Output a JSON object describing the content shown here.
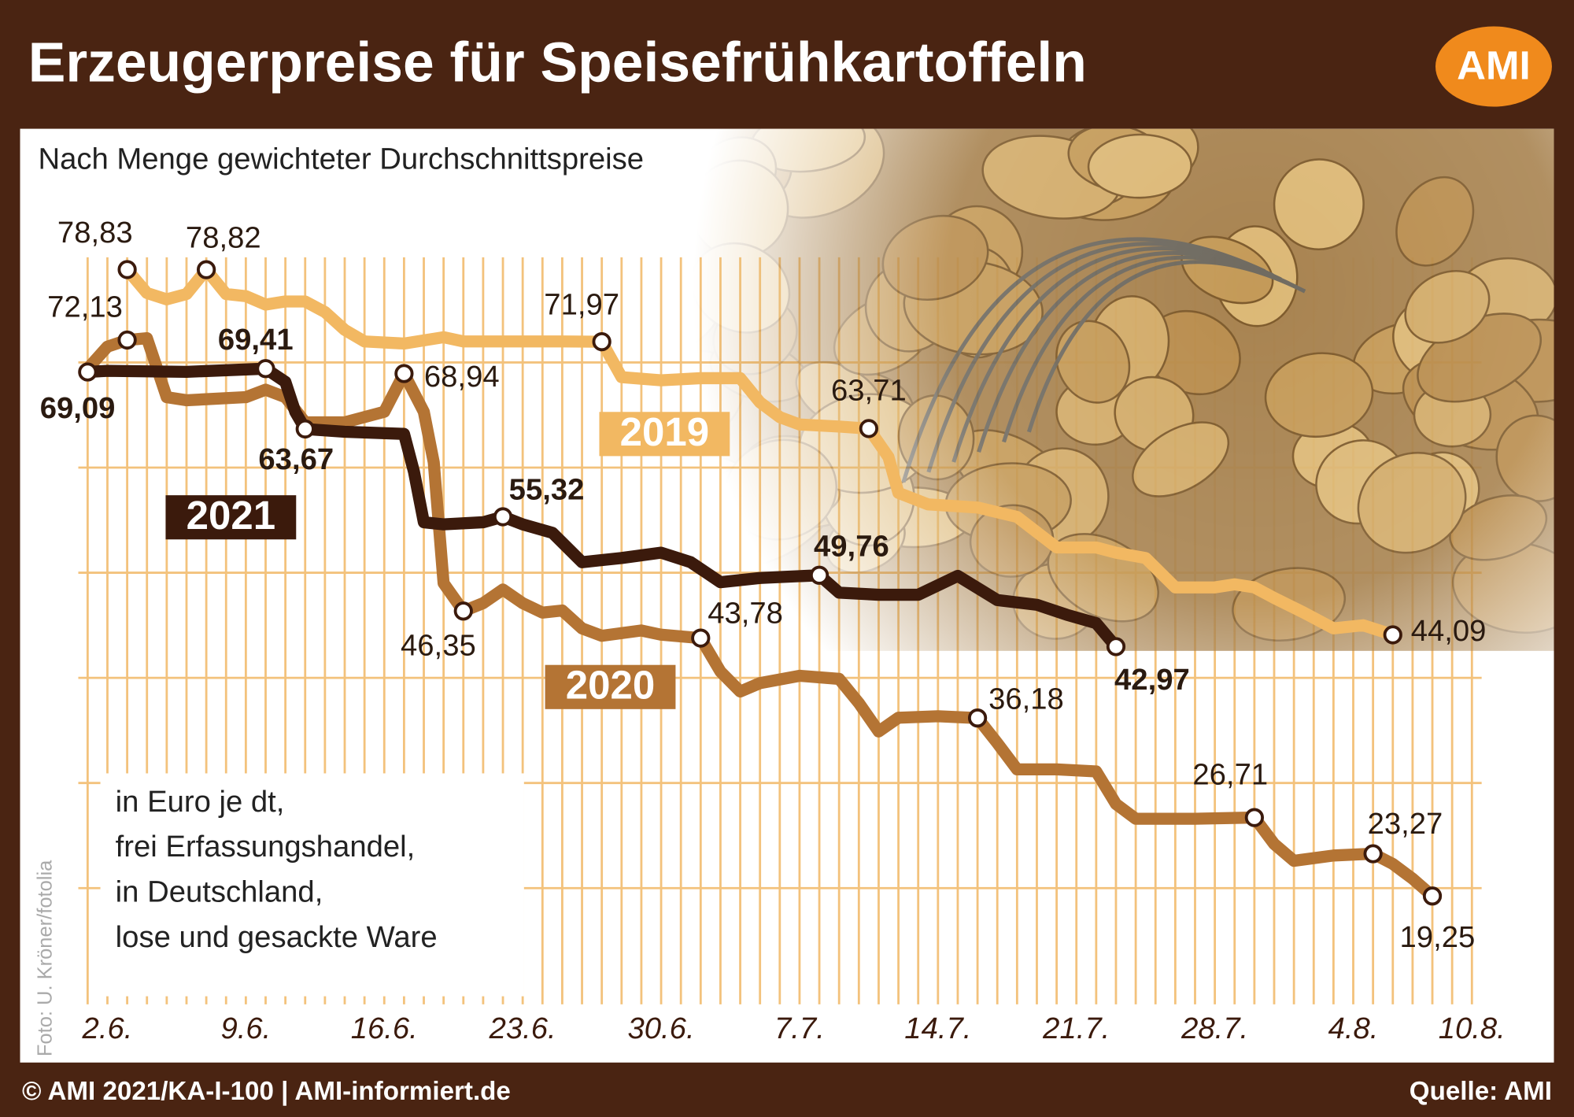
{
  "chart_data": {
    "type": "line",
    "title": "Erzeugerpreise für Speisefrühkartoffeln",
    "subtitle": "Nach Menge gewichteter Durchschnittspreise",
    "logo": "AMI",
    "note": [
      "in Euro je dt,",
      "frei Erfassungshandel,",
      "in Deutschland,",
      "lose und gesackte Ware"
    ],
    "photo_credit": "Foto: U. Kröner/fotolia",
    "copyright": "© AMI 2021/KA-I-100 | AMI-informiert.de",
    "source": "Quelle: AMI",
    "xlim": [
      -1,
      69
    ],
    "xticks": [
      {
        "value": 0,
        "label": "2.6."
      },
      {
        "value": 7,
        "label": "9.6."
      },
      {
        "value": 14,
        "label": "16.6."
      },
      {
        "value": 21,
        "label": "23.6."
      },
      {
        "value": 28,
        "label": "30.6."
      },
      {
        "value": 35,
        "label": "7.7."
      },
      {
        "value": 42,
        "label": "14.7."
      },
      {
        "value": 49,
        "label": "21.7."
      },
      {
        "value": 56,
        "label": "28.7."
      },
      {
        "value": 63,
        "label": "4.8."
      },
      {
        "value": 69,
        "label": "10.8."
      }
    ],
    "xgrid_step": 1,
    "ylim": [
      10,
      80
    ],
    "ygrid": [
      20,
      30,
      40,
      50,
      60,
      70
    ],
    "grid_color": "#f3c27c",
    "series": [
      {
        "name": "2019",
        "color": "#f2b862",
        "label_weight": "normal",
        "x": [
          1,
          2,
          3,
          4,
          5,
          6,
          7,
          8,
          9,
          10,
          11,
          12,
          13,
          15,
          17,
          18,
          20,
          23,
          25,
          26,
          28,
          30,
          32,
          33,
          34,
          35,
          37,
          38.5,
          39.5,
          40,
          41.5,
          44,
          46,
          48,
          50,
          51,
          52.5,
          54,
          56,
          57,
          58,
          59,
          60.5,
          62,
          63.5,
          65
        ],
        "values": [
          78.83,
          76.6,
          76.0,
          76.5,
          78.82,
          76.5,
          76.3,
          75.5,
          75.8,
          75.8,
          74.8,
          73.1,
          72.0,
          71.8,
          72.4,
          72.0,
          72.0,
          72.0,
          71.97,
          68.6,
          68.3,
          68.5,
          68.5,
          66.2,
          64.8,
          64.1,
          63.9,
          63.71,
          61.0,
          57.6,
          56.5,
          56.2,
          55.3,
          52.4,
          52.4,
          51.9,
          51.4,
          48.6,
          48.6,
          48.9,
          48.6,
          47.6,
          46.2,
          44.7,
          45.0,
          44.09
        ],
        "value_labels": [
          "78,83",
          null,
          null,
          null,
          "78,82",
          null,
          null,
          null,
          null,
          null,
          null,
          null,
          null,
          null,
          null,
          null,
          null,
          null,
          "71,97",
          null,
          null,
          null,
          null,
          null,
          null,
          null,
          null,
          "63,71",
          null,
          null,
          null,
          null,
          null,
          null,
          null,
          null,
          null,
          null,
          null,
          null,
          null,
          null,
          null,
          null,
          null,
          "44,09"
        ]
      },
      {
        "name": "2020",
        "color": "#b47434",
        "label_weight": "normal",
        "x": [
          -1,
          0,
          1,
          2,
          3,
          4,
          7,
          8,
          9,
          10,
          12,
          14,
          15,
          16,
          16.5,
          17,
          18,
          19,
          20,
          21,
          22,
          23,
          24,
          25,
          27,
          28,
          30,
          31,
          32,
          33,
          35,
          37,
          38,
          39,
          40,
          42,
          44,
          45,
          46,
          48,
          50,
          51,
          52,
          55,
          58,
          59,
          60,
          62,
          64,
          65,
          66,
          67
        ],
        "values": [
          69.4,
          71.5,
          72.13,
          72.3,
          66.7,
          66.4,
          66.7,
          67.4,
          66.7,
          64.3,
          64.3,
          65.3,
          68.94,
          65.3,
          60.5,
          49.0,
          46.35,
          47.1,
          48.4,
          47.1,
          46.2,
          46.4,
          44.7,
          44.0,
          44.5,
          44.1,
          43.78,
          40.6,
          38.7,
          39.5,
          40.2,
          39.9,
          37.6,
          34.9,
          36.2,
          36.35,
          36.18,
          33.8,
          31.3,
          31.3,
          31.1,
          28.0,
          26.6,
          26.6,
          26.71,
          24.2,
          22.6,
          23.1,
          23.27,
          22.3,
          20.9,
          19.25
        ],
        "value_labels": [
          null,
          null,
          "72,13",
          null,
          null,
          null,
          null,
          null,
          null,
          null,
          null,
          null,
          "68,94",
          null,
          null,
          null,
          "46,35",
          null,
          null,
          null,
          null,
          null,
          null,
          null,
          null,
          null,
          "43,78",
          null,
          null,
          null,
          null,
          null,
          null,
          null,
          null,
          null,
          "36,18",
          null,
          null,
          null,
          null,
          null,
          null,
          null,
          "26,71",
          null,
          null,
          null,
          "23,27",
          null,
          null,
          "19,25"
        ]
      },
      {
        "name": "2021",
        "color": "#3b1a0c",
        "label_weight": "bold",
        "x": [
          -1,
          0,
          4,
          8,
          9,
          9.5,
          10,
          12,
          15,
          15.5,
          16,
          17,
          19,
          20,
          21,
          22.5,
          24,
          26,
          28,
          29.5,
          31,
          33,
          36,
          37,
          39,
          41,
          43,
          45,
          47,
          48.5,
          50,
          51
        ],
        "values": [
          69.09,
          69.2,
          69.1,
          69.41,
          68.15,
          65.3,
          63.67,
          63.4,
          63.2,
          59.6,
          54.8,
          54.6,
          54.8,
          55.32,
          54.6,
          53.8,
          51.0,
          51.4,
          51.9,
          51.0,
          49.1,
          49.5,
          49.76,
          48.1,
          47.9,
          47.9,
          49.7,
          47.4,
          46.95,
          46.0,
          45.2,
          42.97
        ],
        "value_labels": [
          "69,09",
          null,
          null,
          "69,41",
          null,
          null,
          "63,67",
          null,
          null,
          null,
          null,
          null,
          null,
          "55,32",
          null,
          null,
          null,
          null,
          null,
          null,
          null,
          null,
          "49,76",
          null,
          null,
          null,
          null,
          null,
          null,
          null,
          null,
          "42,97"
        ]
      }
    ]
  }
}
